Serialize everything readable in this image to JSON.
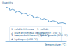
{
  "chart_data": {
    "type": "line",
    "y_label": "Quantity",
    "x_label": "Temperature (°C)",
    "x": [
      0,
      60,
      70,
      110,
      150,
      160,
      200,
      250,
      260,
      300,
      350,
      360,
      400,
      450,
      460,
      520,
      570,
      580,
      640,
      700,
      710,
      780,
      850,
      860,
      930,
      1000
    ],
    "values": [
      94,
      91,
      85,
      88,
      86,
      80,
      83,
      80,
      75,
      78,
      75,
      70,
      73,
      69,
      64,
      67,
      64,
      59,
      62,
      58,
      53,
      56,
      53,
      49,
      51,
      48
    ],
    "color": "#4a90c8",
    "xlim": [
      0,
      1000
    ],
    "ylim": [
      0,
      100
    ],
    "tick_labels": false,
    "grid": false,
    "annotations": [
      "1  cold brittleness",
      "2  blue brittleness (300 °C)",
      "3  temper brittleness (350 °C)",
      "4  hydrogen (450 °C)",
      "5  sulfide",
      "6  graphite (700 °C)",
      "7  grain growth (900 °C)"
    ]
  }
}
